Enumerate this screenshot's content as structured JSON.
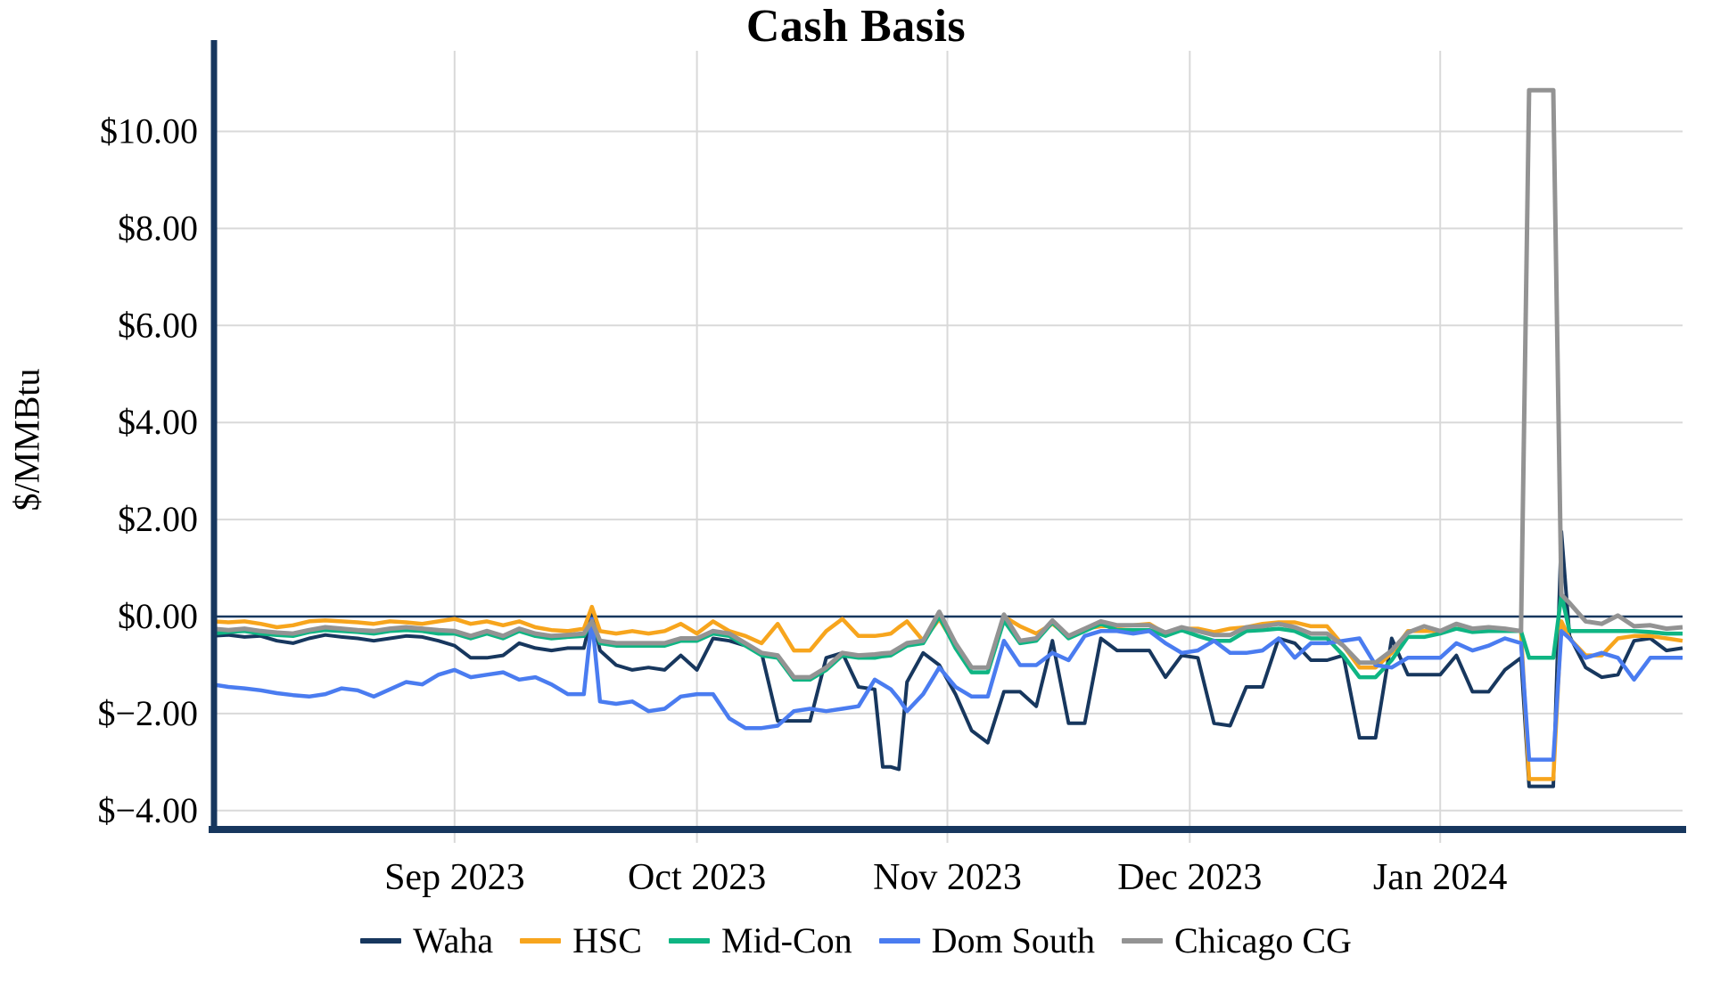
{
  "page_title": "Cash Basis",
  "chart_data": {
    "type": "line",
    "title": "Cash Basis",
    "ylabel": "$/MMBtu",
    "x_unit": "day offset from 2023-08-01",
    "xlim_days": [
      1,
      183
    ],
    "ylim": [
      -4.39,
      11.66
    ],
    "grid": true,
    "zero_line": true,
    "legend_position": "bottom-center",
    "x_ticks": [
      {
        "label": "Sep 2023",
        "day": 31
      },
      {
        "label": "Oct 2023",
        "day": 61
      },
      {
        "label": "Nov 2023",
        "day": 92
      },
      {
        "label": "Dec 2023",
        "day": 122
      },
      {
        "label": "Jan 2024",
        "day": 153
      }
    ],
    "y_ticks": [
      {
        "label": "$−4.00",
        "value": -4
      },
      {
        "label": "$−2.00",
        "value": -2
      },
      {
        "label": "$0.00",
        "value": 0
      },
      {
        "label": "$2.00",
        "value": 2
      },
      {
        "label": "$4.00",
        "value": 4
      },
      {
        "label": "$6.00",
        "value": 6
      },
      {
        "label": "$8.00",
        "value": 8
      },
      {
        "label": "$10.00",
        "value": 10
      }
    ],
    "colors": {
      "axis": "#17375e",
      "grid": "#d9d9d9",
      "zero_line": "#17375e",
      "background": "#ffffff"
    },
    "x_days": [
      1,
      3,
      5,
      7,
      9,
      11,
      13,
      15,
      17,
      19,
      21,
      23,
      25,
      27,
      29,
      31,
      33,
      35,
      37,
      39,
      41,
      43,
      45,
      47,
      48,
      49,
      51,
      53,
      55,
      57,
      59,
      61,
      63,
      65,
      67,
      69,
      71,
      73,
      75,
      77,
      79,
      81,
      83,
      84,
      85,
      86,
      87,
      89,
      91,
      93,
      95,
      97,
      99,
      101,
      103,
      105,
      107,
      109,
      111,
      113,
      115,
      117,
      119,
      121,
      123,
      125,
      127,
      129,
      131,
      133,
      135,
      137,
      139,
      141,
      143,
      145,
      147,
      149,
      151,
      153,
      155,
      157,
      159,
      161,
      163,
      164,
      165,
      167,
      168,
      169,
      171,
      173,
      175,
      177,
      179,
      181,
      183
    ],
    "series": [
      {
        "name": "Waha",
        "color": "#17375e",
        "values": [
          -0.4,
          -0.38,
          -0.42,
          -0.4,
          -0.5,
          -0.55,
          -0.45,
          -0.38,
          -0.42,
          -0.45,
          -0.5,
          -0.45,
          -0.4,
          -0.42,
          -0.5,
          -0.6,
          -0.85,
          -0.85,
          -0.8,
          -0.55,
          -0.65,
          -0.7,
          -0.65,
          -0.65,
          0.05,
          -0.7,
          -1.0,
          -1.1,
          -1.05,
          -1.1,
          -0.8,
          -1.1,
          -0.45,
          -0.5,
          -0.6,
          -0.75,
          -2.15,
          -2.15,
          -2.15,
          -0.85,
          -0.75,
          -1.45,
          -1.5,
          -3.1,
          -3.1,
          -3.15,
          -1.35,
          -0.75,
          -1.0,
          -1.6,
          -2.35,
          -2.6,
          -1.55,
          -1.55,
          -1.85,
          -0.5,
          -2.2,
          -2.2,
          -0.45,
          -0.7,
          -0.7,
          -0.7,
          -1.25,
          -0.8,
          -0.85,
          -2.2,
          -2.25,
          -1.45,
          -1.45,
          -0.45,
          -0.55,
          -0.9,
          -0.9,
          -0.8,
          -2.5,
          -2.5,
          -0.45,
          -1.2,
          -1.2,
          -1.2,
          -0.8,
          -1.55,
          -1.55,
          -1.1,
          -0.85,
          -3.5,
          -3.5,
          -3.5,
          1.75,
          -0.4,
          -1.05,
          -1.25,
          -1.2,
          -0.5,
          -0.45,
          -0.7,
          -0.65
        ]
      },
      {
        "name": "HSC",
        "color": "#f7a51d",
        "values": [
          -0.1,
          -0.12,
          -0.1,
          -0.15,
          -0.22,
          -0.18,
          -0.1,
          -0.08,
          -0.1,
          -0.12,
          -0.15,
          -0.1,
          -0.12,
          -0.15,
          -0.1,
          -0.05,
          -0.15,
          -0.1,
          -0.18,
          -0.1,
          -0.22,
          -0.28,
          -0.3,
          -0.25,
          0.2,
          -0.3,
          -0.35,
          -0.3,
          -0.35,
          -0.3,
          -0.15,
          -0.35,
          -0.1,
          -0.3,
          -0.4,
          -0.55,
          -0.15,
          -0.7,
          -0.7,
          -0.3,
          -0.05,
          -0.4,
          -0.4,
          -0.38,
          -0.35,
          -0.22,
          -0.1,
          -0.5,
          -0.05,
          -0.6,
          -1.05,
          -1.05,
          0.0,
          -0.2,
          -0.35,
          -0.15,
          -0.4,
          -0.25,
          -0.2,
          -0.2,
          -0.18,
          -0.15,
          -0.35,
          -0.25,
          -0.25,
          -0.32,
          -0.25,
          -0.22,
          -0.15,
          -0.12,
          -0.12,
          -0.2,
          -0.2,
          -0.6,
          -1.05,
          -1.05,
          -0.75,
          -0.3,
          -0.3,
          -0.3,
          -0.25,
          -0.28,
          -0.25,
          -0.3,
          -0.3,
          -3.35,
          -3.35,
          -3.35,
          -0.1,
          -0.45,
          -0.8,
          -0.8,
          -0.45,
          -0.4,
          -0.4,
          -0.45,
          -0.5
        ]
      },
      {
        "name": "Mid-Con",
        "color": "#0fb583",
        "values": [
          -0.35,
          -0.32,
          -0.3,
          -0.35,
          -0.38,
          -0.4,
          -0.32,
          -0.28,
          -0.3,
          -0.32,
          -0.35,
          -0.3,
          -0.28,
          -0.3,
          -0.35,
          -0.35,
          -0.45,
          -0.35,
          -0.45,
          -0.3,
          -0.4,
          -0.45,
          -0.42,
          -0.4,
          -0.1,
          -0.55,
          -0.6,
          -0.6,
          -0.6,
          -0.6,
          -0.5,
          -0.5,
          -0.35,
          -0.4,
          -0.6,
          -0.8,
          -0.85,
          -1.3,
          -1.3,
          -1.1,
          -0.8,
          -0.85,
          -0.85,
          -0.82,
          -0.8,
          -0.7,
          -0.6,
          -0.55,
          0.0,
          -0.65,
          -1.15,
          -1.15,
          -0.08,
          -0.55,
          -0.5,
          -0.12,
          -0.45,
          -0.3,
          -0.15,
          -0.28,
          -0.28,
          -0.28,
          -0.4,
          -0.28,
          -0.4,
          -0.5,
          -0.5,
          -0.3,
          -0.28,
          -0.25,
          -0.3,
          -0.45,
          -0.45,
          -0.8,
          -1.25,
          -1.25,
          -0.9,
          -0.42,
          -0.42,
          -0.35,
          -0.25,
          -0.32,
          -0.3,
          -0.3,
          -0.3,
          -0.85,
          -0.85,
          -0.85,
          0.45,
          -0.3,
          -0.3,
          -0.3,
          -0.3,
          -0.3,
          -0.32,
          -0.35,
          -0.35
        ]
      },
      {
        "name": "Dom South",
        "color": "#4a7cf0",
        "values": [
          -1.4,
          -1.45,
          -1.48,
          -1.52,
          -1.58,
          -1.62,
          -1.65,
          -1.6,
          -1.48,
          -1.52,
          -1.65,
          -1.5,
          -1.35,
          -1.4,
          -1.2,
          -1.1,
          -1.25,
          -1.2,
          -1.15,
          -1.3,
          -1.25,
          -1.4,
          -1.6,
          -1.6,
          -0.05,
          -1.75,
          -1.8,
          -1.75,
          -1.95,
          -1.9,
          -1.65,
          -1.6,
          -1.6,
          -2.1,
          -2.3,
          -2.3,
          -2.25,
          -1.95,
          -1.9,
          -1.95,
          -1.9,
          -1.85,
          -1.3,
          -1.4,
          -1.5,
          -1.7,
          -1.95,
          -1.6,
          -1.05,
          -1.45,
          -1.65,
          -1.65,
          -0.5,
          -1.0,
          -1.0,
          -0.75,
          -0.9,
          -0.4,
          -0.3,
          -0.3,
          -0.35,
          -0.3,
          -0.55,
          -0.75,
          -0.7,
          -0.5,
          -0.75,
          -0.75,
          -0.7,
          -0.45,
          -0.85,
          -0.55,
          -0.55,
          -0.5,
          -0.45,
          -1.0,
          -1.05,
          -0.85,
          -0.85,
          -0.85,
          -0.55,
          -0.7,
          -0.6,
          -0.45,
          -0.55,
          -2.95,
          -2.95,
          -2.95,
          -0.3,
          -0.45,
          -0.85,
          -0.75,
          -0.85,
          -1.3,
          -0.85,
          -0.85,
          -0.85
        ]
      },
      {
        "name": "Chicago CG",
        "color": "#939393",
        "values": [
          -0.25,
          -0.28,
          -0.25,
          -0.3,
          -0.33,
          -0.35,
          -0.28,
          -0.22,
          -0.25,
          -0.28,
          -0.3,
          -0.25,
          -0.22,
          -0.25,
          -0.28,
          -0.3,
          -0.4,
          -0.3,
          -0.4,
          -0.25,
          -0.35,
          -0.4,
          -0.38,
          -0.35,
          -0.1,
          -0.5,
          -0.55,
          -0.55,
          -0.55,
          -0.55,
          -0.45,
          -0.45,
          -0.3,
          -0.35,
          -0.55,
          -0.75,
          -0.8,
          -1.25,
          -1.25,
          -1.05,
          -0.75,
          -0.8,
          -0.78,
          -0.76,
          -0.75,
          -0.65,
          -0.55,
          -0.5,
          0.1,
          -0.55,
          -1.05,
          -1.05,
          0.04,
          -0.5,
          -0.45,
          -0.08,
          -0.4,
          -0.25,
          -0.1,
          -0.18,
          -0.18,
          -0.18,
          -0.33,
          -0.22,
          -0.3,
          -0.38,
          -0.38,
          -0.22,
          -0.2,
          -0.15,
          -0.22,
          -0.35,
          -0.35,
          -0.6,
          -0.95,
          -0.95,
          -0.7,
          -0.33,
          -0.2,
          -0.3,
          -0.15,
          -0.25,
          -0.22,
          -0.25,
          -0.3,
          10.85,
          10.85,
          10.85,
          0.45,
          0.28,
          -0.1,
          -0.15,
          0.02,
          -0.2,
          -0.18,
          -0.25,
          -0.22
        ]
      }
    ]
  }
}
